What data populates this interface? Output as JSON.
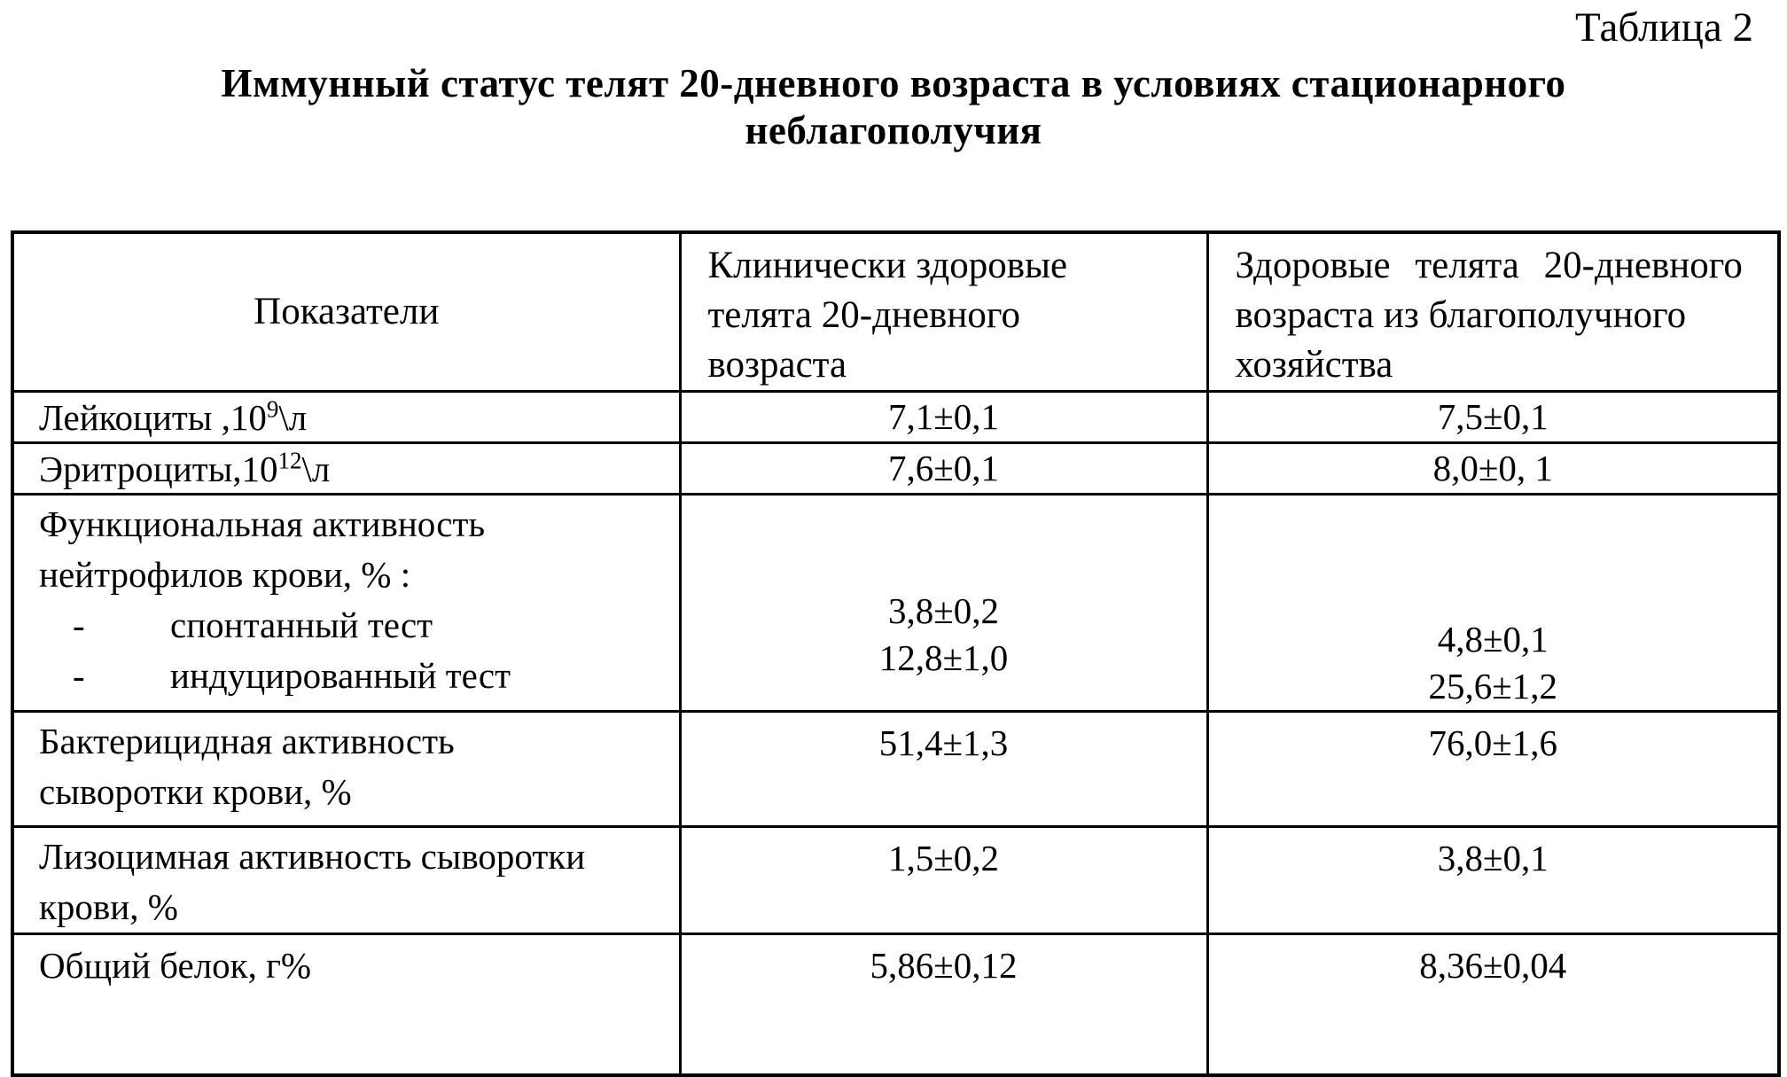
{
  "page": {
    "table_label": "Таблица 2",
    "title_line1": "Иммунный статус телят 20-дневного возраста в условиях стационарного",
    "title_line2": "неблагополучия",
    "colors": {
      "ink": "#000000",
      "paper": "#ffffff"
    }
  },
  "table": {
    "header": {
      "indicators": "Показатели",
      "group1_line1": "Клинически здоровые",
      "group1_line2": "телята 20-дневного",
      "group1_line3": "возраста",
      "group2_line1": "Здоровые телята 20-дневного",
      "group2_line2": "возраста из благополучного",
      "group2_line3": "хозяйства"
    },
    "rows": {
      "leukocytes": {
        "label_prefix": "Лейкоциты ,10",
        "label_sup": "9",
        "label_suffix": "\\л",
        "value1": "7,1±0,1",
        "value2": "7,5±0,1"
      },
      "erythrocytes": {
        "label_prefix": "Эритроциты,10",
        "label_sup": "12",
        "label_suffix": "\\л",
        "value1": "7,6±0,1",
        "value2": "8,0±0, 1"
      },
      "neutrophil_activity": {
        "label_line1": "Функциональная активность",
        "label_line2": "нейтрофилов крови, % :",
        "item1_dash": "-",
        "item1_label": "спонтанный тест",
        "item2_dash": "-",
        "item2_label": "индуцированный тест",
        "value1_line1": "3,8±0,2",
        "value1_line2": "12,8±1,0",
        "value2_line1": "4,8±0,1",
        "value2_line2": "25,6±1,2"
      },
      "bactericidal": {
        "label_line1": "Бактерицидная активность",
        "label_line2": "сыворотки крови, %",
        "value1": "51,4±1,3",
        "value2": "76,0±1,6"
      },
      "lysozyme": {
        "label_line1": "Лизоцимная активность сыворотки",
        "label_line2": "крови, %",
        "value1": "1,5±0,2",
        "value2": "3,8±0,1"
      },
      "total_protein": {
        "label": "Общий белок, г%",
        "value1": "5,86±0,12",
        "value2": "8,36±0,04"
      }
    }
  }
}
